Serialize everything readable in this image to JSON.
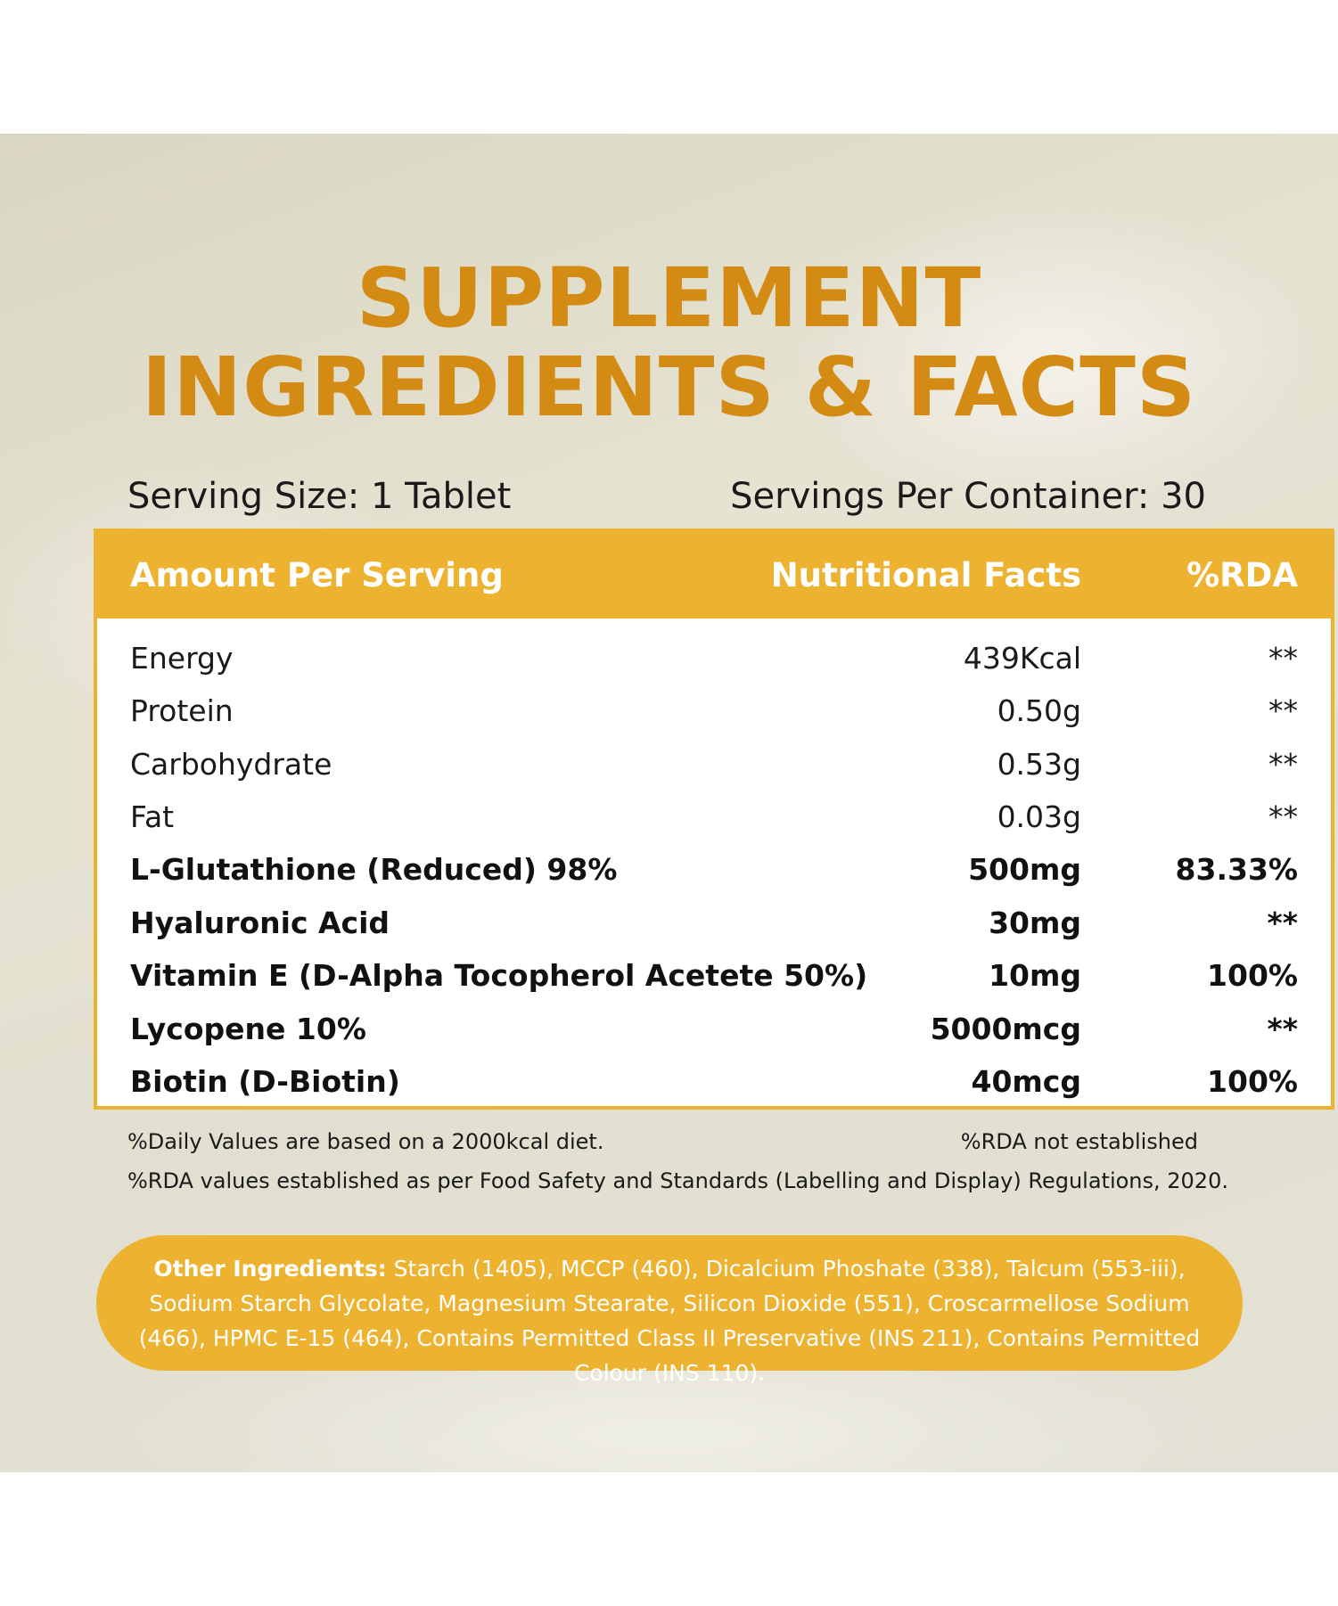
{
  "title": {
    "line1": "SUPPLEMENT",
    "line2": "INGREDIENTS & FACTS"
  },
  "serving": {
    "size": "Serving Size: 1 Tablet",
    "per_container": "Servings Per Container: 30"
  },
  "table": {
    "headers": {
      "amount": "Amount Per Serving",
      "facts": "Nutritional Facts",
      "rda": "%RDA"
    },
    "rows": [
      {
        "name": "Energy",
        "amount": "439Kcal",
        "rda": "**",
        "bold": false
      },
      {
        "name": "Protein",
        "amount": "0.50g",
        "rda": "**",
        "bold": false
      },
      {
        "name": "Carbohydrate",
        "amount": "0.53g",
        "rda": "**",
        "bold": false
      },
      {
        "name": "Fat",
        "amount": "0.03g",
        "rda": "**",
        "bold": false
      },
      {
        "name": "L-Glutathione (Reduced) 98%",
        "amount": "500mg",
        "rda": "83.33%",
        "bold": true
      },
      {
        "name": "Hyaluronic Acid",
        "amount": "30mg",
        "rda": "**",
        "bold": true
      },
      {
        "name": "Vitamin E (D-Alpha Tocopherol Acetete 50%)",
        "amount": "10mg",
        "rda": "100%",
        "bold": true
      },
      {
        "name": "Lycopene 10%",
        "amount": "5000mcg",
        "rda": "**",
        "bold": true
      },
      {
        "name": "Biotin (D-Biotin)",
        "amount": "40mcg",
        "rda": "100%",
        "bold": true
      }
    ]
  },
  "notes": {
    "daily_values": "%Daily Values are based on a 2000kcal diet.",
    "rda_not_established": "%RDA not established",
    "rda_regulation": "%RDA values established as per Food Safety and Standards (Labelling and Display) Regulations, 2020."
  },
  "other_ingredients": {
    "label": "Other Ingredients:",
    "text": " Starch (1405), MCCP (460), Dicalcium Phoshate (338), Talcum (553-iii), Sodium Starch Glycolate, Magnesium Stearate, Silicon Dioxide (551), Croscarmellose Sodium (466), HPMC E-15 (464), Contains Permitted Class II Preservative (INS 211), Contains Permitted Colour (INS 110)."
  },
  "colors": {
    "accent": "#ecb230",
    "title": "#d48b14",
    "text": "#1a1a1a"
  }
}
